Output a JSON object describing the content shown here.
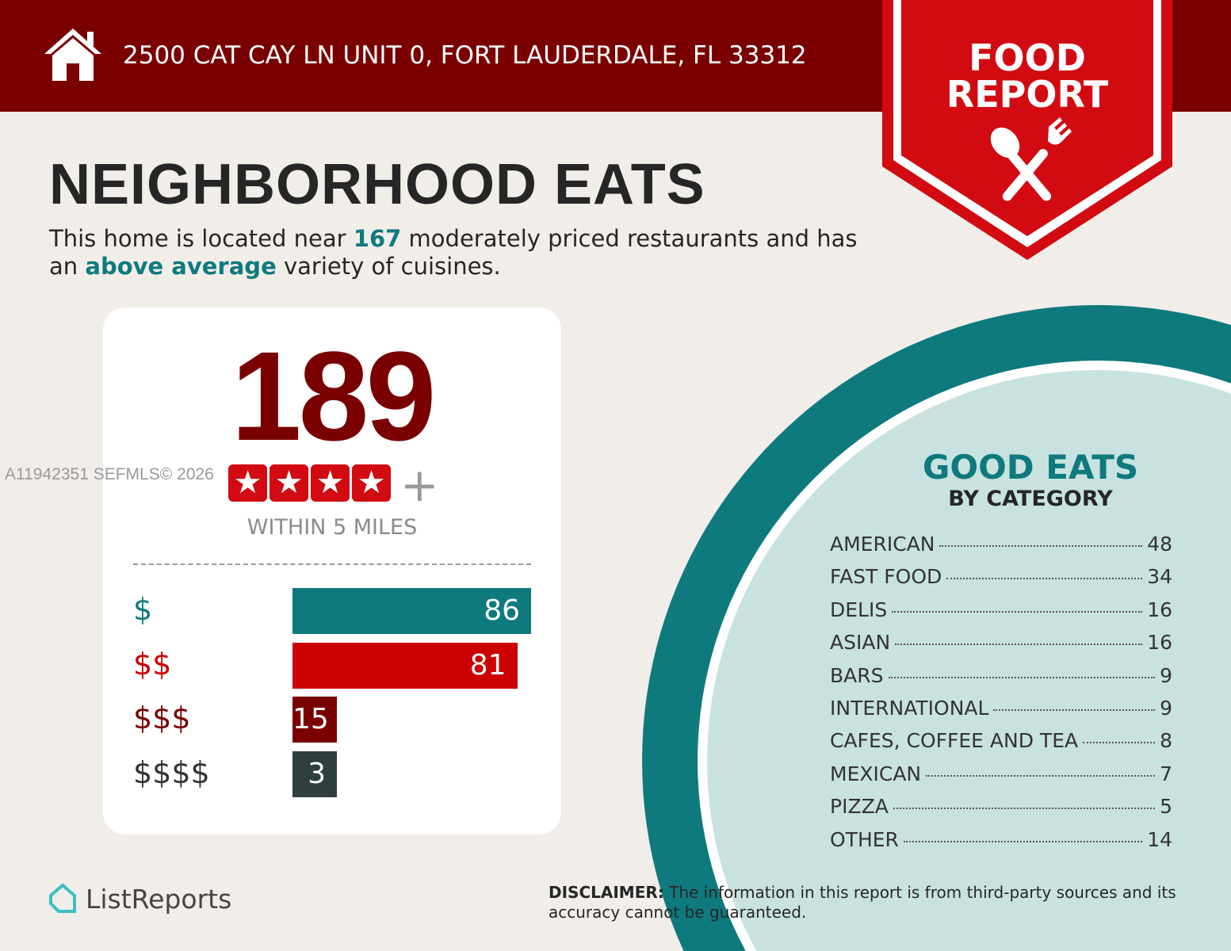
{
  "header": {
    "address": "2500 CAT CAY LN UNIT 0, FORT LAUDERDALE, FL 33312",
    "badge_line1": "FOOD",
    "badge_line2": "REPORT",
    "home_icon": "house-icon",
    "utensils_icon": "spoon-fork-icon"
  },
  "title": "NEIGHBORHOOD EATS",
  "subtitle": {
    "p1": "This home is located near ",
    "count": "167",
    "p2": " moderately priced restaurants and has an ",
    "variety": "above average",
    "p3": " variety of cuisines."
  },
  "card": {
    "total": "189",
    "rating_stars": 4,
    "plus": "+",
    "within": "WITHIN 5 MILES"
  },
  "watermark": "A11942351  SEFMLS© 2026",
  "chart_data": {
    "type": "bar",
    "orientation": "horizontal",
    "categories": [
      "$",
      "$$",
      "$$$",
      "$$$$"
    ],
    "values": [
      86,
      81,
      15,
      3
    ],
    "colors": [
      "#0e7a7e",
      "#cc0000",
      "#7a0000",
      "#2f3e3f"
    ]
  },
  "good_eats": {
    "title": "GOOD EATS",
    "subtitle": "BY CATEGORY",
    "items": [
      {
        "name": "AMERICAN",
        "count": "48"
      },
      {
        "name": "FAST FOOD",
        "count": "34"
      },
      {
        "name": "DELIS",
        "count": "16"
      },
      {
        "name": "ASIAN",
        "count": "16"
      },
      {
        "name": "BARS",
        "count": "9"
      },
      {
        "name": "INTERNATIONAL",
        "count": "9"
      },
      {
        "name": "CAFES, COFFEE AND TEA",
        "count": "8"
      },
      {
        "name": "MEXICAN",
        "count": "7"
      },
      {
        "name": "PIZZA",
        "count": "5"
      },
      {
        "name": "OTHER",
        "count": "14"
      }
    ]
  },
  "footer": {
    "logo": "ListReports",
    "disclaimer_label": "DISCLAIMER:",
    "disclaimer": " The information in this report is from third-party sources and its accuracy cannot be guaranteed."
  },
  "colors": {
    "maroon": "#7a0000",
    "red": "#d20a11",
    "teal": "#0e7a7e",
    "light_teal": "#c8e2df"
  }
}
